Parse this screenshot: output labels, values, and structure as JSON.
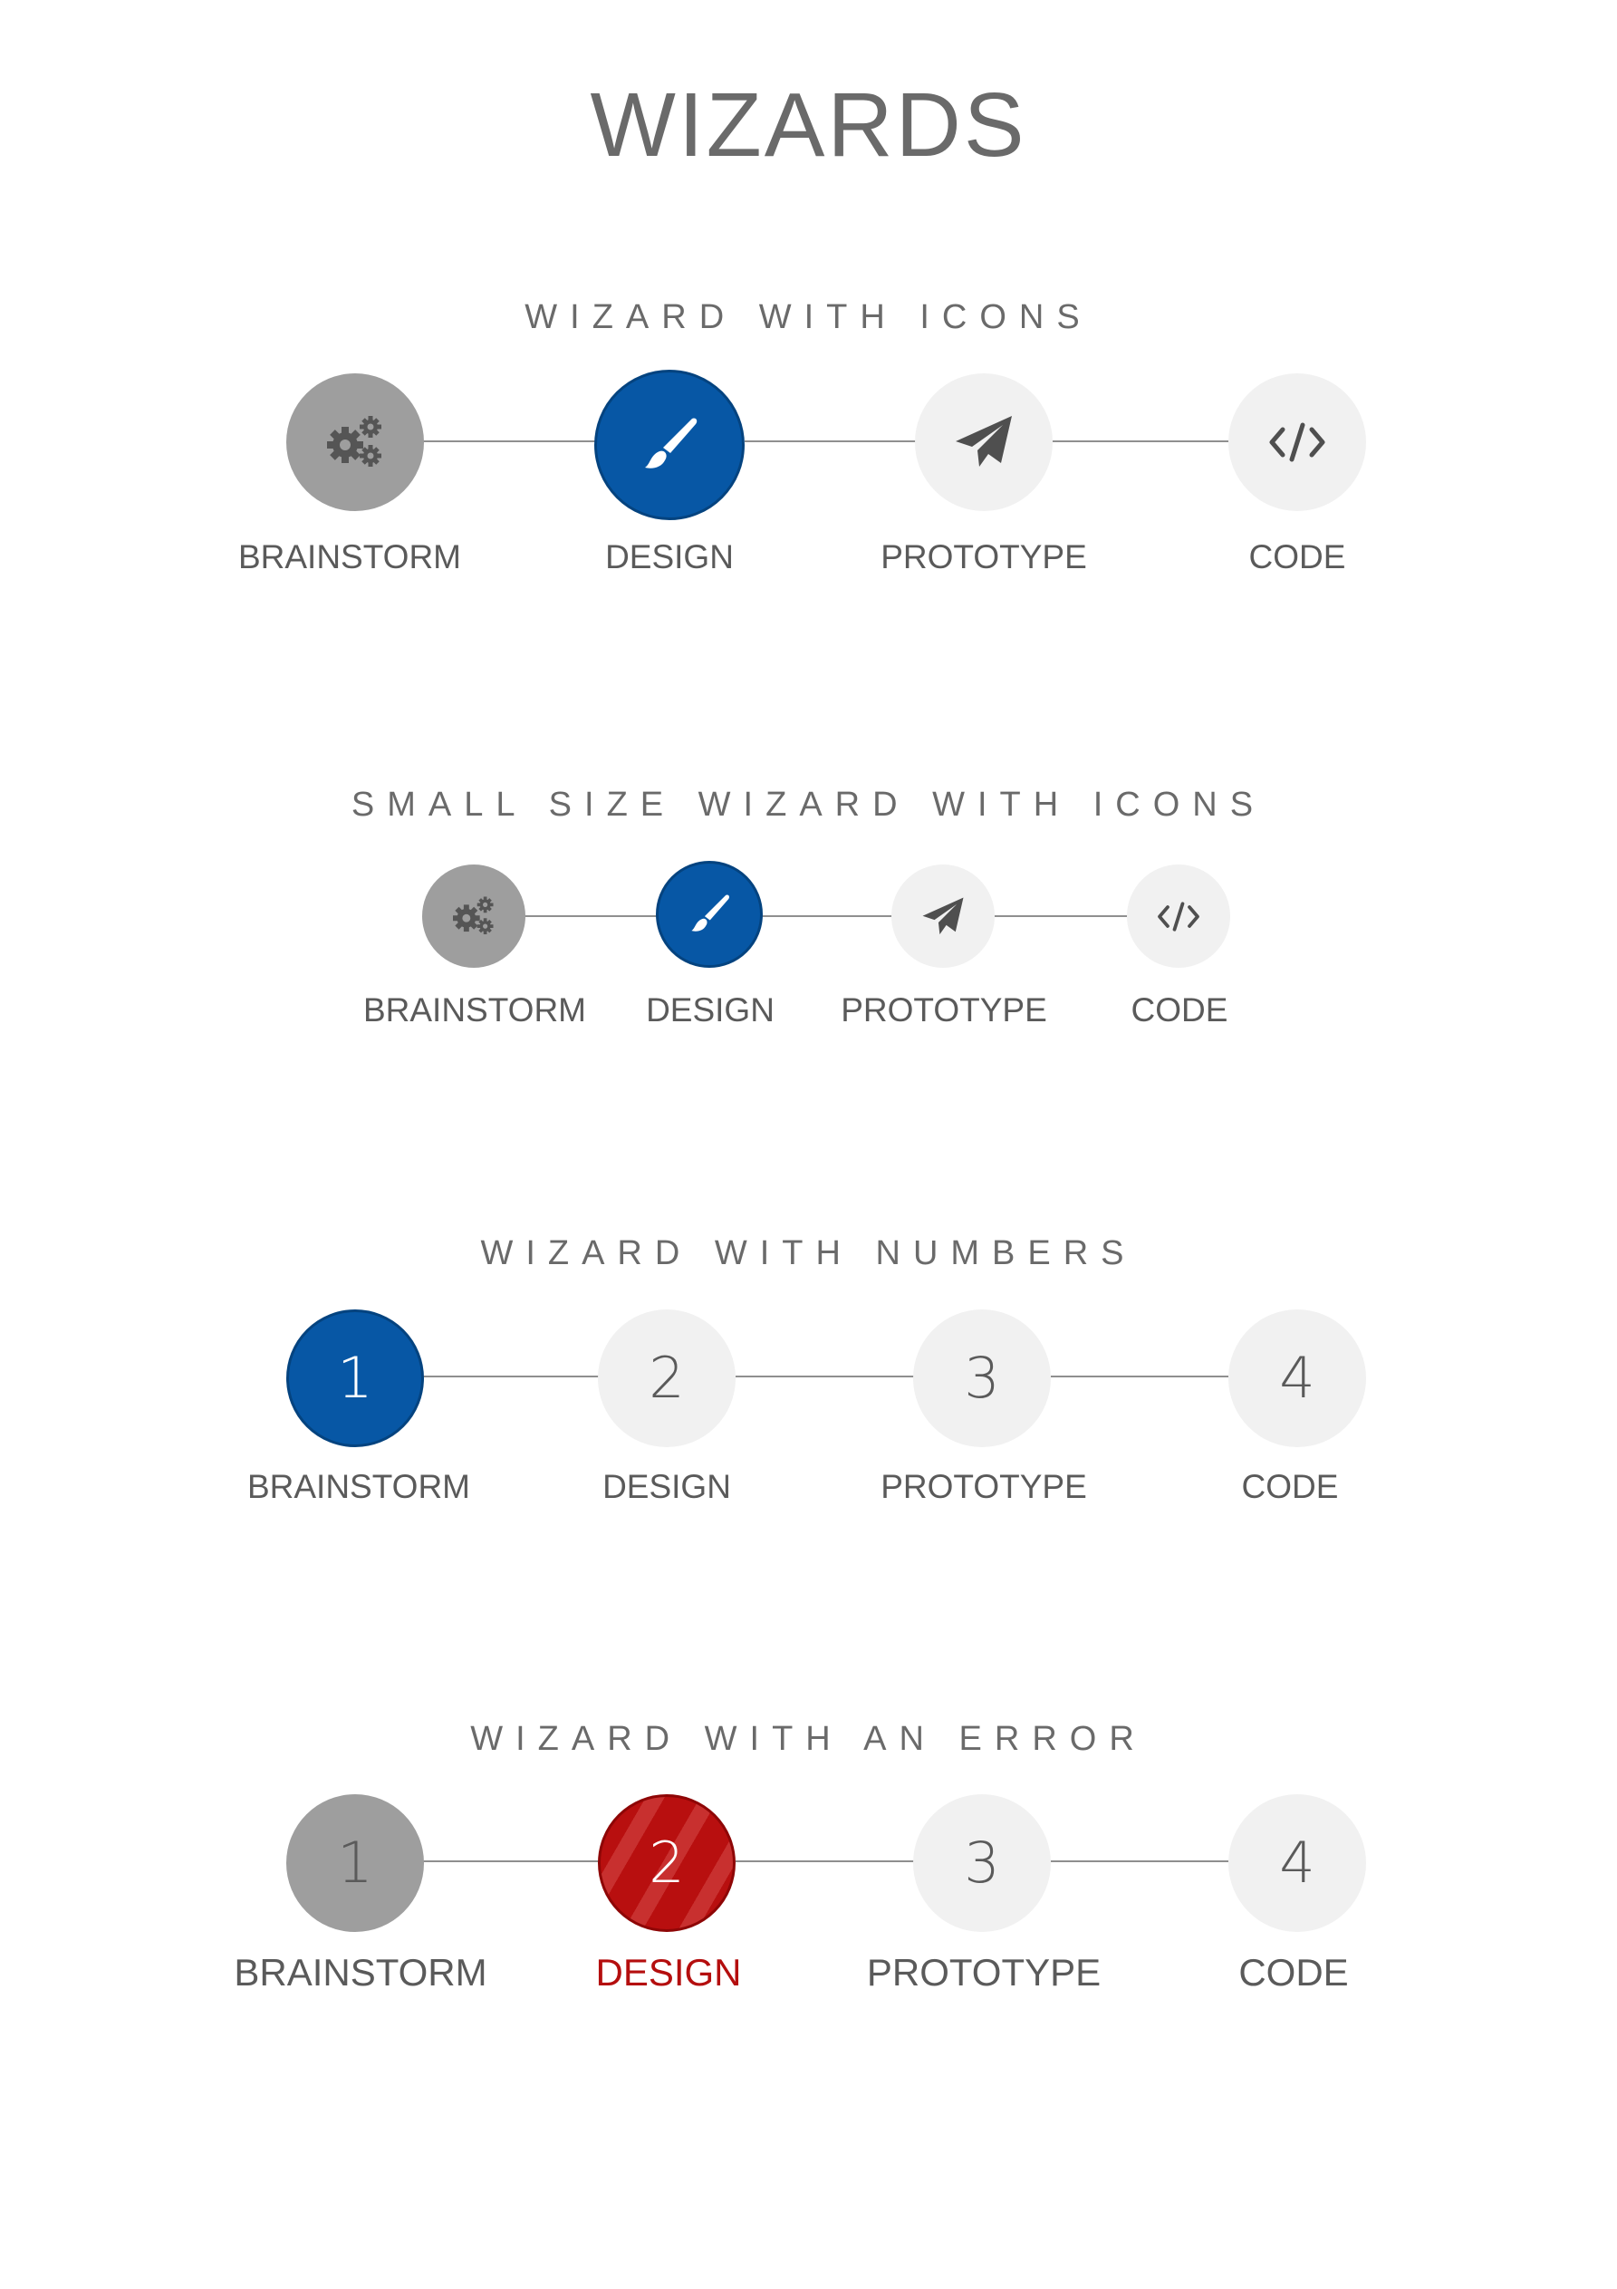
{
  "page": {
    "title": "WIZARDS"
  },
  "wizards": [
    {
      "title": "WIZARD WITH ICONS",
      "steps": [
        {
          "label": "BRAINSTORM",
          "state": "done",
          "icon": "gears-icon"
        },
        {
          "label": "DESIGN",
          "state": "active",
          "icon": "paintbrush-icon"
        },
        {
          "label": "PROTOTYPE",
          "state": "todo",
          "icon": "paper-plane-icon"
        },
        {
          "label": "CODE",
          "state": "todo",
          "icon": "code-icon"
        }
      ]
    },
    {
      "title": "SMALL SIZE WIZARD WITH ICONS",
      "steps": [
        {
          "label": "BRAINSTORM",
          "state": "done",
          "icon": "gears-icon"
        },
        {
          "label": "DESIGN",
          "state": "active",
          "icon": "paintbrush-icon"
        },
        {
          "label": "PROTOTYPE",
          "state": "todo",
          "icon": "paper-plane-icon"
        },
        {
          "label": "CODE",
          "state": "todo",
          "icon": "code-icon"
        }
      ]
    },
    {
      "title": "WIZARD WITH NUMBERS",
      "steps": [
        {
          "label": "BRAINSTORM",
          "state": "active",
          "number": "1"
        },
        {
          "label": "DESIGN",
          "state": "todo",
          "number": "2"
        },
        {
          "label": "PROTOTYPE",
          "state": "todo",
          "number": "3"
        },
        {
          "label": "CODE",
          "state": "todo",
          "number": "4"
        }
      ]
    },
    {
      "title": "WIZARD WITH AN ERROR",
      "steps": [
        {
          "label": "BRAINSTORM",
          "state": "done",
          "number": "1"
        },
        {
          "label": "DESIGN",
          "state": "error",
          "number": "2"
        },
        {
          "label": "PROTOTYPE",
          "state": "todo",
          "number": "3"
        },
        {
          "label": "CODE",
          "state": "todo",
          "number": "4"
        }
      ]
    }
  ],
  "colors": {
    "active": "#0757a5",
    "done": "#9e9e9e",
    "todo": "#f1f1f1",
    "error": "#b80f0f",
    "connector": "#8f8f8f",
    "text": "#5a5a5a"
  }
}
